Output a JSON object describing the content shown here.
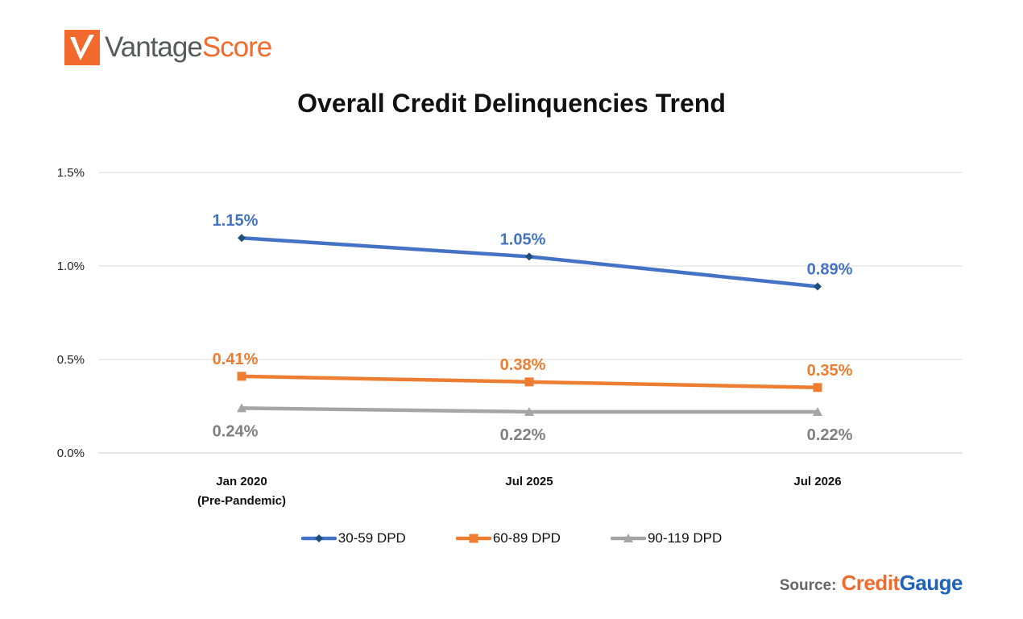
{
  "logo": {
    "part1": "Vantage",
    "part2": "Score",
    "mark_color": "#f26a2e"
  },
  "chart_data": {
    "type": "line",
    "title": "Overall Credit Delinquencies Trend",
    "categories": [
      {
        "line1": "Jan 2020",
        "line2": "(Pre-Pandemic)"
      },
      {
        "line1": "Jul 2025",
        "line2": ""
      },
      {
        "line1": "Jul 2026",
        "line2": ""
      }
    ],
    "y_ticks": [
      {
        "value": 0.0,
        "label": "0.0%"
      },
      {
        "value": 0.5,
        "label": "0.5%"
      },
      {
        "value": 1.0,
        "label": "1.0%"
      },
      {
        "value": 1.5,
        "label": "1.5%"
      }
    ],
    "ylim": [
      0,
      1.5
    ],
    "grid": true,
    "legend_position": "bottom",
    "series": [
      {
        "name": "30-59 DPD",
        "color": "#4472c4",
        "marker": "diamond",
        "marker_color": "#1f4e79",
        "label_color": "#4472c4",
        "label_position": "above",
        "values": [
          1.15,
          1.05,
          0.89
        ],
        "labels": [
          "1.15%",
          "1.05%",
          "0.89%"
        ]
      },
      {
        "name": "60-89 DPD",
        "color": "#ed7d31",
        "marker": "square",
        "marker_color": "#ed7d31",
        "label_color": "#ed7d31",
        "label_position": "above",
        "values": [
          0.41,
          0.38,
          0.35
        ],
        "labels": [
          "0.41%",
          "0.38%",
          "0.35%"
        ]
      },
      {
        "name": "90-119 DPD",
        "color": "#a5a5a5",
        "marker": "triangle",
        "marker_color": "#a5a5a5",
        "label_color": "#7f7f7f",
        "label_position": "below",
        "values": [
          0.24,
          0.22,
          0.22
        ],
        "labels": [
          "0.24%",
          "0.22%",
          "0.22%"
        ]
      }
    ]
  },
  "source": {
    "label": "Source:",
    "brand_part1": "Credit",
    "brand_part2": "Gauge"
  }
}
